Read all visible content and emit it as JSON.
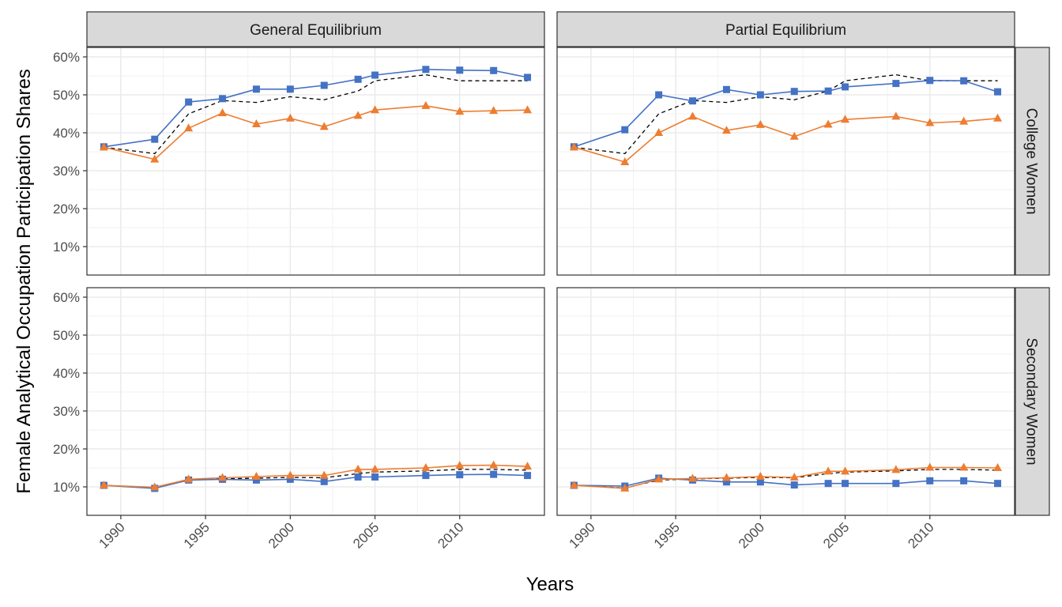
{
  "chart_data": {
    "type": "line",
    "xlabel": "Years",
    "ylabel": "Female Analytical Occupation Participation Shares",
    "x_ticks": [
      1990,
      1995,
      2000,
      2005,
      2010
    ],
    "y_ticks": [
      0.1,
      0.2,
      0.3,
      0.4,
      0.5,
      0.6
    ],
    "y_tick_labels": [
      "10%",
      "20%",
      "30%",
      "40%",
      "50%",
      "60%"
    ],
    "xlim": [
      1988,
      2015
    ],
    "ylim": [
      0.025,
      0.625
    ],
    "facet_columns": [
      "General Equilibrium",
      "Partial Equilibrium"
    ],
    "facet_rows": [
      "College Women",
      "Secondary Women"
    ],
    "colors": {
      "blue": "#4472C4",
      "orange": "#ED7D31",
      "dashed": "#000000"
    },
    "x": [
      1989,
      1992,
      1994,
      1996,
      1998,
      2000,
      2002,
      2004,
      2005,
      2008,
      2010,
      2012,
      2014
    ],
    "panels": [
      {
        "col": 0,
        "row": 0,
        "series": [
          {
            "color_key": "dashed",
            "marker": "none",
            "values": [
              0.362,
              0.345,
              0.45,
              0.485,
              0.48,
              0.495,
              0.487,
              0.51,
              0.537,
              0.553,
              0.537,
              0.537,
              0.537
            ]
          },
          {
            "color_key": "blue",
            "marker": "square",
            "values": [
              0.363,
              0.383,
              0.481,
              0.49,
              0.515,
              0.515,
              0.525,
              0.541,
              0.552,
              0.567,
              0.565,
              0.564,
              0.546
            ]
          },
          {
            "color_key": "orange",
            "marker": "triangle",
            "values": [
              0.362,
              0.33,
              0.412,
              0.452,
              0.423,
              0.438,
              0.416,
              0.445,
              0.46,
              0.471,
              0.456,
              0.458,
              0.46
            ]
          }
        ]
      },
      {
        "col": 1,
        "row": 0,
        "series": [
          {
            "color_key": "dashed",
            "marker": "none",
            "values": [
              0.362,
              0.345,
              0.45,
              0.485,
              0.48,
              0.495,
              0.487,
              0.51,
              0.537,
              0.553,
              0.537,
              0.537,
              0.537
            ]
          },
          {
            "color_key": "blue",
            "marker": "square",
            "values": [
              0.363,
              0.408,
              0.5,
              0.484,
              0.514,
              0.5,
              0.509,
              0.51,
              0.521,
              0.53,
              0.538,
              0.537,
              0.508
            ]
          },
          {
            "color_key": "orange",
            "marker": "triangle",
            "values": [
              0.362,
              0.323,
              0.4,
              0.443,
              0.406,
              0.421,
              0.39,
              0.422,
              0.435,
              0.443,
              0.426,
              0.43,
              0.438
            ]
          }
        ]
      },
      {
        "col": 0,
        "row": 1,
        "series": [
          {
            "color_key": "dashed",
            "marker": "none",
            "values": [
              0.104,
              0.097,
              0.118,
              0.121,
              0.123,
              0.125,
              0.124,
              0.135,
              0.139,
              0.142,
              0.146,
              0.146,
              0.144
            ]
          },
          {
            "color_key": "blue",
            "marker": "square",
            "values": [
              0.104,
              0.096,
              0.118,
              0.12,
              0.118,
              0.12,
              0.114,
              0.126,
              0.126,
              0.13,
              0.132,
              0.133,
              0.13
            ]
          },
          {
            "color_key": "orange",
            "marker": "triangle",
            "values": [
              0.104,
              0.099,
              0.12,
              0.124,
              0.127,
              0.13,
              0.13,
              0.146,
              0.146,
              0.15,
              0.156,
              0.157,
              0.154
            ]
          }
        ]
      },
      {
        "col": 1,
        "row": 1,
        "series": [
          {
            "color_key": "dashed",
            "marker": "none",
            "values": [
              0.104,
              0.097,
              0.118,
              0.121,
              0.123,
              0.125,
              0.124,
              0.135,
              0.139,
              0.142,
              0.146,
              0.146,
              0.144
            ]
          },
          {
            "color_key": "blue",
            "marker": "square",
            "values": [
              0.104,
              0.102,
              0.123,
              0.118,
              0.113,
              0.113,
              0.105,
              0.109,
              0.109,
              0.109,
              0.116,
              0.116,
              0.109
            ]
          },
          {
            "color_key": "orange",
            "marker": "triangle",
            "values": [
              0.104,
              0.096,
              0.12,
              0.122,
              0.124,
              0.127,
              0.125,
              0.141,
              0.141,
              0.145,
              0.151,
              0.151,
              0.15
            ]
          }
        ]
      }
    ]
  }
}
